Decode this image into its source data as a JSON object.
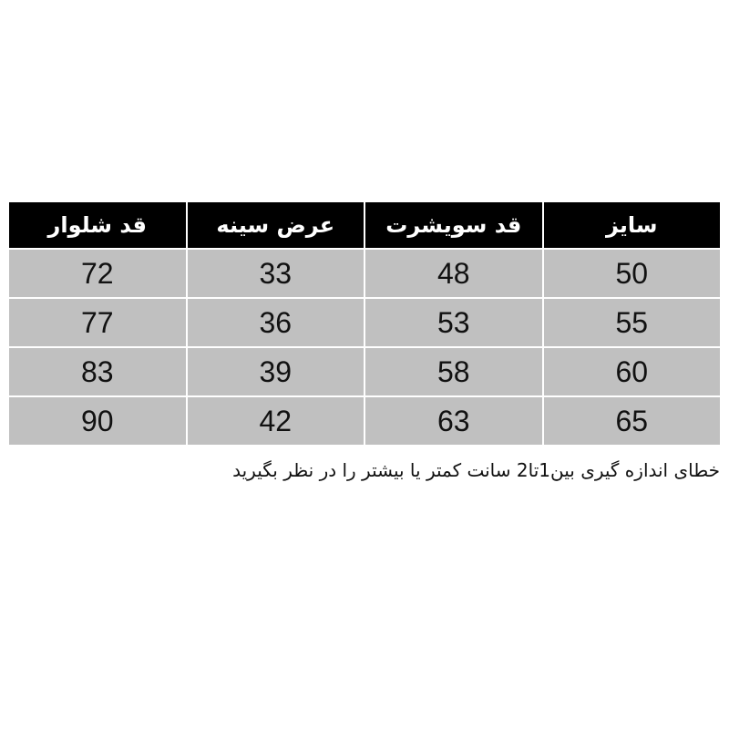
{
  "table": {
    "headers": [
      "سایز",
      "قد سویشرت",
      "عرض سینه",
      "قد شلوار"
    ],
    "rows": [
      [
        "50",
        "48",
        "33",
        "72"
      ],
      [
        "55",
        "53",
        "36",
        "77"
      ],
      [
        "60",
        "58",
        "39",
        "83"
      ],
      [
        "65",
        "63",
        "42",
        "90"
      ]
    ]
  },
  "note": "خطای اندازه گیری بین1تا2 سانت کمتر یا بیشتر را در نظر بگیرید",
  "colors": {
    "header_bg": "#000000",
    "cell_bg": "#c0c0c0"
  }
}
